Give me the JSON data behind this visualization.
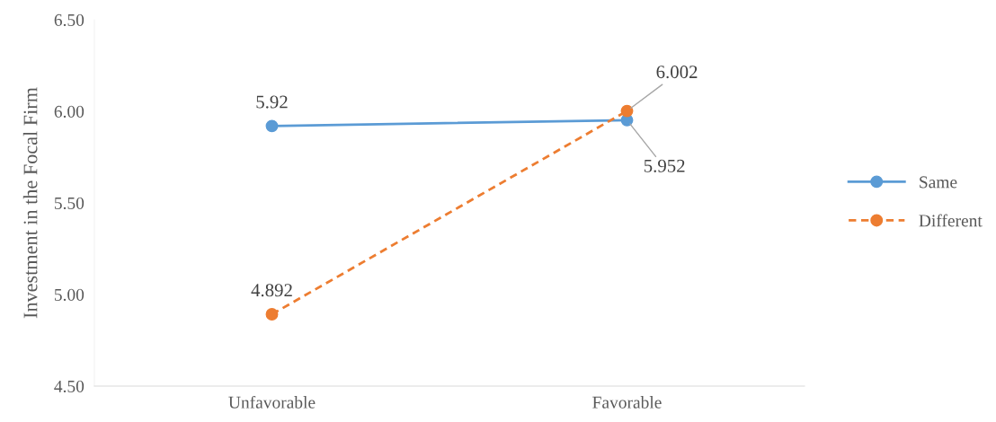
{
  "chart_data": {
    "type": "line",
    "ylabel": "Investment in the Focal Firm",
    "categories": [
      "Unfavorable",
      "Favorable"
    ],
    "series": [
      {
        "name": "Same",
        "color": "#5b9bd5",
        "values": [
          5.92,
          5.952
        ],
        "line_style": "solid"
      },
      {
        "name": "Different",
        "color": "#ed7d31",
        "values": [
          4.892,
          6.002
        ],
        "line_style": "dashed"
      }
    ],
    "ylim": [
      4.5,
      6.5
    ],
    "yticks": [
      {
        "value": 4.5,
        "label": "4.50"
      },
      {
        "value": 5.0,
        "label": "5.00"
      },
      {
        "value": 5.5,
        "label": "5.50"
      },
      {
        "value": 6.0,
        "label": "6.00"
      },
      {
        "value": 6.5,
        "label": "6.50"
      }
    ],
    "marker": "circle",
    "data_labels": true,
    "legend": "right",
    "grid": false
  }
}
